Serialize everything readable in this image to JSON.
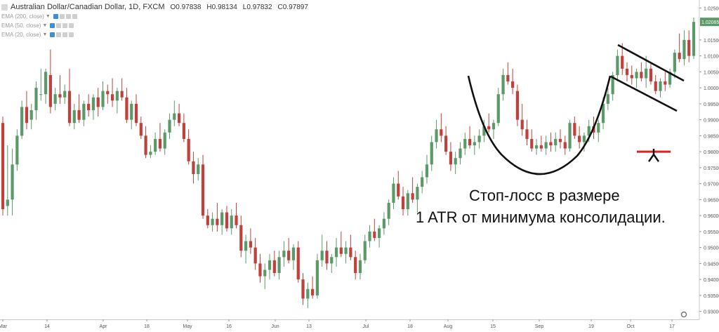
{
  "header": {
    "title": "Australian Dollar/Canadian Dollar, 1D, FXCM",
    "open": "O0.97838",
    "high": "H0.98134",
    "low": "L0.97832",
    "close": "C0.97897"
  },
  "indicators": [
    {
      "label": "EMA (200, close)"
    },
    {
      "label": "EMA (50, close)"
    },
    {
      "label": "EMA (20, close)"
    }
  ],
  "annotation": {
    "line1": "Стоп-лосс в размере",
    "line2": "1  ATR от минимума консолидации."
  },
  "colors": {
    "up": "#5b9a68",
    "down": "#c0403b",
    "last_price_bg": "#5b9a68",
    "stop_line": "#e02020",
    "drawing": "#111111"
  },
  "chart_data": {
    "type": "candlestick",
    "title": "Australian Dollar/Canadian Dollar, 1D, FXCM",
    "ylim": [
      0.9275,
      1.0275
    ],
    "yticks": [
      "1.02500",
      "1.01500",
      "1.01000",
      "1.00500",
      "1.00000",
      "0.99500",
      "0.99000",
      "0.98500",
      "0.98000",
      "0.97500",
      "0.97000",
      "0.96500",
      "0.96000",
      "0.95500",
      "0.95000",
      "0.94500",
      "0.94000",
      "0.93500",
      "0.93000"
    ],
    "last_price": "1.02065",
    "xticks": [
      "Mar",
      "14",
      "Apr",
      "18",
      "May",
      "16",
      "Jun",
      "13",
      "Jul",
      "18",
      "Aug",
      "15",
      "Sep",
      "19",
      "Oct",
      "17"
    ],
    "stop_level": 0.98,
    "grid": false,
    "candles": [
      [
        0.989,
        0.991,
        0.96,
        0.962
      ],
      [
        0.963,
        0.982,
        0.96,
        0.965
      ],
      [
        0.965,
        0.981,
        0.96,
        0.976
      ],
      [
        0.976,
        0.987,
        0.974,
        0.985
      ],
      [
        0.985,
        0.996,
        0.984,
        0.994
      ],
      [
        0.994,
        0.999,
        0.987,
        0.989
      ],
      [
        0.99,
        0.995,
        0.987,
        0.993
      ],
      [
        0.993,
        1.002,
        0.99,
        1.0
      ],
      [
        0.998,
        1.006,
        0.996,
        0.998
      ],
      [
        0.998,
        1.006,
        0.995,
        1.005
      ],
      [
        1.004,
        1.012,
        0.992,
        0.994
      ],
      [
        0.995,
        1.0,
        0.993,
        0.998
      ],
      [
        0.998,
        1.004,
        0.995,
        0.997
      ],
      [
        0.997,
        1.001,
        0.995,
        0.999
      ],
      [
        0.999,
        1.006,
        0.988,
        0.989
      ],
      [
        0.989,
        0.995,
        0.987,
        0.993
      ],
      [
        0.993,
        0.998,
        0.989,
        0.99
      ],
      [
        0.99,
        0.996,
        0.988,
        0.995
      ],
      [
        0.995,
        0.998,
        0.991,
        0.993
      ],
      [
        0.993,
        0.998,
        0.99,
        0.997
      ],
      [
        0.997,
        1.0,
        0.991,
        0.994
      ],
      [
        0.994,
        1.002,
        0.993,
        0.999
      ],
      [
        0.999,
        1.001,
        0.995,
        0.998
      ],
      [
        0.998,
        1.003,
        0.994,
        0.996
      ],
      [
        0.996,
        1.0,
        0.992,
        0.999
      ],
      [
        0.999,
        1.003,
        0.996,
        0.997
      ],
      [
        0.997,
        1.0,
        0.989,
        0.99
      ],
      [
        0.99,
        0.996,
        0.987,
        0.995
      ],
      [
        0.995,
        0.998,
        0.988,
        0.989
      ],
      [
        0.989,
        0.991,
        0.984,
        0.985
      ],
      [
        0.985,
        0.988,
        0.978,
        0.979
      ],
      [
        0.979,
        0.982,
        0.978,
        0.98
      ],
      [
        0.98,
        0.986,
        0.979,
        0.984
      ],
      [
        0.984,
        0.989,
        0.98,
        0.981
      ],
      [
        0.981,
        0.987,
        0.979,
        0.986
      ],
      [
        0.986,
        0.992,
        0.984,
        0.99
      ],
      [
        0.99,
        0.996,
        0.988,
        0.992
      ],
      [
        0.992,
        0.995,
        0.988,
        0.989
      ],
      [
        0.989,
        0.992,
        0.983,
        0.984
      ],
      [
        0.984,
        0.987,
        0.976,
        0.977
      ],
      [
        0.977,
        0.98,
        0.97,
        0.973
      ],
      [
        0.973,
        0.978,
        0.971,
        0.976
      ],
      [
        0.976,
        0.979,
        0.959,
        0.96
      ],
      [
        0.96,
        0.962,
        0.956,
        0.957
      ],
      [
        0.957,
        0.961,
        0.955,
        0.959
      ],
      [
        0.959,
        0.964,
        0.955,
        0.957
      ],
      [
        0.957,
        0.962,
        0.954,
        0.961
      ],
      [
        0.961,
        0.963,
        0.955,
        0.956
      ],
      [
        0.956,
        0.962,
        0.954,
        0.96
      ],
      [
        0.96,
        0.964,
        0.956,
        0.957
      ],
      [
        0.957,
        0.96,
        0.947,
        0.949
      ],
      [
        0.949,
        0.954,
        0.945,
        0.952
      ],
      [
        0.952,
        0.956,
        0.948,
        0.95
      ],
      [
        0.95,
        0.953,
        0.943,
        0.945
      ],
      [
        0.945,
        0.948,
        0.939,
        0.941
      ],
      [
        0.941,
        0.945,
        0.937,
        0.943
      ],
      [
        0.943,
        0.948,
        0.94,
        0.946
      ],
      [
        0.946,
        0.949,
        0.941,
        0.942
      ],
      [
        0.942,
        0.949,
        0.94,
        0.947
      ],
      [
        0.947,
        0.952,
        0.944,
        0.949
      ],
      [
        0.949,
        0.953,
        0.945,
        0.946
      ],
      [
        0.946,
        0.951,
        0.943,
        0.95
      ],
      [
        0.95,
        0.952,
        0.939,
        0.94
      ],
      [
        0.94,
        0.942,
        0.932,
        0.934
      ],
      [
        0.934,
        0.939,
        0.931,
        0.937
      ],
      [
        0.937,
        0.941,
        0.934,
        0.935
      ],
      [
        0.935,
        0.948,
        0.934,
        0.946
      ],
      [
        0.946,
        0.954,
        0.944,
        0.949
      ],
      [
        0.949,
        0.952,
        0.943,
        0.945
      ],
      [
        0.945,
        0.948,
        0.942,
        0.947
      ],
      [
        0.947,
        0.953,
        0.944,
        0.95
      ],
      [
        0.95,
        0.955,
        0.947,
        0.948
      ],
      [
        0.948,
        0.952,
        0.945,
        0.95
      ],
      [
        0.95,
        0.954,
        0.946,
        0.947
      ],
      [
        0.947,
        0.949,
        0.94,
        0.942
      ],
      [
        0.942,
        0.948,
        0.94,
        0.946
      ],
      [
        0.946,
        0.954,
        0.945,
        0.952
      ],
      [
        0.952,
        0.957,
        0.95,
        0.955
      ],
      [
        0.955,
        0.959,
        0.952,
        0.953
      ],
      [
        0.953,
        0.957,
        0.95,
        0.956
      ],
      [
        0.956,
        0.961,
        0.954,
        0.959
      ],
      [
        0.959,
        0.965,
        0.957,
        0.964
      ],
      [
        0.964,
        0.972,
        0.962,
        0.97
      ],
      [
        0.97,
        0.974,
        0.965,
        0.966
      ],
      [
        0.966,
        0.969,
        0.96,
        0.962
      ],
      [
        0.962,
        0.968,
        0.96,
        0.967
      ],
      [
        0.967,
        0.972,
        0.964,
        0.965
      ],
      [
        0.965,
        0.97,
        0.961,
        0.969
      ],
      [
        0.969,
        0.974,
        0.967,
        0.972
      ],
      [
        0.972,
        0.979,
        0.97,
        0.976
      ],
      [
        0.976,
        0.985,
        0.974,
        0.983
      ],
      [
        0.983,
        0.99,
        0.981,
        0.987
      ],
      [
        0.987,
        0.992,
        0.983,
        0.985
      ],
      [
        0.985,
        0.988,
        0.979,
        0.98
      ],
      [
        0.98,
        0.983,
        0.974,
        0.976
      ],
      [
        0.976,
        0.98,
        0.973,
        0.978
      ],
      [
        0.978,
        0.983,
        0.976,
        0.981
      ],
      [
        0.981,
        0.986,
        0.979,
        0.984
      ],
      [
        0.984,
        0.988,
        0.981,
        0.982
      ],
      [
        0.982,
        0.985,
        0.979,
        0.983
      ],
      [
        0.983,
        0.987,
        0.981,
        0.985
      ],
      [
        0.985,
        0.99,
        0.983,
        0.988
      ],
      [
        0.988,
        0.992,
        0.986,
        0.987
      ],
      [
        0.987,
        0.99,
        0.984,
        0.989
      ],
      [
        0.989,
        1.0,
        0.988,
        0.998
      ],
      [
        0.998,
        1.006,
        0.996,
        1.004
      ],
      [
        1.004,
        1.008,
        1.001,
        1.002
      ],
      [
        1.002,
        1.006,
        0.998,
        1.0
      ],
      [
        0.999,
        1.001,
        0.988,
        0.99
      ],
      [
        0.99,
        0.995,
        0.985,
        0.987
      ],
      [
        0.987,
        0.99,
        0.982,
        0.984
      ],
      [
        0.984,
        0.987,
        0.98,
        0.981
      ],
      [
        0.981,
        0.984,
        0.979,
        0.982
      ],
      [
        0.982,
        0.985,
        0.98,
        0.981
      ],
      [
        0.981,
        0.985,
        0.979,
        0.983
      ],
      [
        0.983,
        0.986,
        0.98,
        0.982
      ],
      [
        0.982,
        0.986,
        0.98,
        0.984
      ],
      [
        0.984,
        0.987,
        0.981,
        0.983
      ],
      [
        0.983,
        0.985,
        0.979,
        0.981
      ],
      [
        0.981,
        0.99,
        0.98,
        0.989
      ],
      [
        0.989,
        0.991,
        0.984,
        0.985
      ],
      [
        0.985,
        0.988,
        0.981,
        0.983
      ],
      [
        0.983,
        0.986,
        0.98,
        0.985
      ],
      [
        0.985,
        0.99,
        0.983,
        0.988
      ],
      [
        0.988,
        0.991,
        0.984,
        0.986
      ],
      [
        0.986,
        0.99,
        0.983,
        0.989
      ],
      [
        0.989,
        0.997,
        0.987,
        0.995
      ],
      [
        0.995,
        1.0,
        0.993,
        0.998
      ],
      [
        0.998,
        1.005,
        0.996,
        1.004
      ],
      [
        1.004,
        1.012,
        1.002,
        1.01
      ],
      [
        1.01,
        1.014,
        1.004,
        1.006
      ],
      [
        1.006,
        1.008,
        1.002,
        1.004
      ],
      [
        1.004,
        1.007,
        1.001,
        1.003
      ],
      [
        1.003,
        1.006,
        1.0,
        1.005
      ],
      [
        1.005,
        1.008,
        1.002,
        1.003
      ],
      [
        1.003,
        1.01,
        1.0,
        1.006
      ],
      [
        1.006,
        1.008,
        1.001,
        1.002
      ],
      [
        1.002,
        1.004,
        0.998,
        0.999
      ],
      [
        0.999,
        1.003,
        0.997,
        1.002
      ],
      [
        1.002,
        1.005,
        0.999,
        1.001
      ],
      [
        1.001,
        1.006,
        1.0,
        1.005
      ],
      [
        1.005,
        1.012,
        1.003,
        1.011
      ],
      [
        1.011,
        1.017,
        1.008,
        1.009
      ],
      [
        1.009,
        1.018,
        1.007,
        1.015
      ],
      [
        1.015,
        1.018,
        1.008,
        1.01
      ],
      [
        1.01,
        1.022,
        1.009,
        1.02065
      ]
    ]
  }
}
